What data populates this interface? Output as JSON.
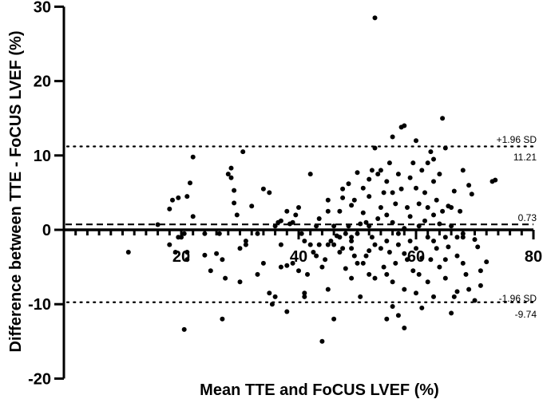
{
  "chart_data": {
    "type": "scatter",
    "title": "",
    "xlabel": "Mean TTE and FoCUS LVEF (%)",
    "ylabel": "Difference between TTE - FoCUS LVEF (%)",
    "xlim": [
      0,
      80
    ],
    "ylim": [
      -20,
      30
    ],
    "xticks": [
      20,
      40,
      60,
      80
    ],
    "yticks": [
      -20,
      -10,
      0,
      10,
      20,
      30
    ],
    "grid": false,
    "reference_lines": [
      {
        "name": "+1.96 SD",
        "value": 11.21,
        "style": "dotted",
        "label_top": "+1.96 SD",
        "label_bottom": "11.21"
      },
      {
        "name": "mean bias",
        "value": 0.73,
        "style": "dashed",
        "label_top": "0.73"
      },
      {
        "name": "-1.96 SD",
        "value": -9.74,
        "style": "dotted",
        "label_top": "-1.96 SD",
        "label_bottom": "-9.74"
      }
    ],
    "points": [
      [
        11,
        -3
      ],
      [
        16,
        0.7
      ],
      [
        18,
        -2
      ],
      [
        19,
        -3
      ],
      [
        19.5,
        -1
      ],
      [
        20,
        -1
      ],
      [
        20.5,
        -0.5
      ],
      [
        21,
        -4
      ],
      [
        21,
        -3
      ],
      [
        20.5,
        -13.4
      ],
      [
        18,
        2.8
      ],
      [
        18.5,
        4
      ],
      [
        19.5,
        4.3
      ],
      [
        21,
        4.5
      ],
      [
        21.5,
        6.3
      ],
      [
        22,
        9.8
      ],
      [
        22,
        1.8
      ],
      [
        24,
        -0.5
      ],
      [
        24,
        -3.4
      ],
      [
        25,
        -5.5
      ],
      [
        26,
        -3.2
      ],
      [
        26.5,
        -0.5
      ],
      [
        27,
        -4
      ],
      [
        27,
        -12
      ],
      [
        27.5,
        -6.5
      ],
      [
        28,
        7.5
      ],
      [
        28.5,
        8.3
      ],
      [
        28.5,
        7
      ],
      [
        29,
        5.3
      ],
      [
        29,
        3.6
      ],
      [
        29.5,
        2
      ],
      [
        30,
        -7
      ],
      [
        30,
        -2.5
      ],
      [
        30.5,
        10.5
      ],
      [
        31,
        -1.5
      ],
      [
        31,
        -2
      ],
      [
        32,
        3.2
      ],
      [
        33,
        -0.5
      ],
      [
        33,
        -6
      ],
      [
        34,
        -4.5
      ],
      [
        34,
        5.5
      ],
      [
        35,
        5
      ],
      [
        35,
        -8.5
      ],
      [
        35.5,
        -10
      ],
      [
        36,
        -9
      ],
      [
        36,
        0.5
      ],
      [
        36.5,
        1
      ],
      [
        37,
        -5
      ],
      [
        37,
        -2
      ],
      [
        37,
        1.2
      ],
      [
        38,
        -11
      ],
      [
        38,
        2.5
      ],
      [
        38,
        -4.8
      ],
      [
        38.5,
        0.8
      ],
      [
        39,
        1
      ],
      [
        39.5,
        2
      ],
      [
        40,
        -5.5
      ],
      [
        40,
        3
      ],
      [
        40.5,
        -0.5
      ],
      [
        41,
        -1.5
      ],
      [
        41,
        -8.5
      ],
      [
        41,
        -9
      ],
      [
        41.5,
        -6
      ],
      [
        42,
        7.5
      ],
      [
        42,
        -2
      ],
      [
        42.5,
        -3
      ],
      [
        43,
        0.5
      ],
      [
        43.5,
        1.5
      ],
      [
        43.5,
        -2
      ],
      [
        44,
        -15
      ],
      [
        44,
        -5
      ],
      [
        44.5,
        -4
      ],
      [
        45,
        4
      ],
      [
        45,
        -2
      ],
      [
        45,
        2.5
      ],
      [
        45.5,
        -1.5
      ],
      [
        46,
        -2
      ],
      [
        46,
        0.5
      ],
      [
        46.5,
        -0.8
      ],
      [
        47,
        -3
      ],
      [
        47,
        -1
      ],
      [
        47,
        2.5
      ],
      [
        47.5,
        4.3
      ],
      [
        47.5,
        5.5
      ],
      [
        47.5,
        -2.5
      ],
      [
        48,
        -0.5
      ],
      [
        48.5,
        6.2
      ],
      [
        48.5,
        0.5
      ],
      [
        49,
        -1
      ],
      [
        49,
        3.3
      ],
      [
        49,
        -6.5
      ],
      [
        49,
        -1.5
      ],
      [
        49.5,
        4
      ],
      [
        49.5,
        -3.5
      ],
      [
        50,
        7.7
      ],
      [
        50,
        -0.5
      ],
      [
        50.5,
        0.8
      ],
      [
        50.5,
        -9
      ],
      [
        51,
        2.3
      ],
      [
        51,
        5.6
      ],
      [
        51,
        -4.5
      ],
      [
        51.5,
        1
      ],
      [
        51.5,
        -3.5
      ],
      [
        52,
        0.5
      ],
      [
        52,
        4.5
      ],
      [
        52,
        6.8
      ],
      [
        52,
        -6
      ],
      [
        52.5,
        -1
      ],
      [
        52.5,
        8
      ],
      [
        53,
        -6.5
      ],
      [
        53,
        -2
      ],
      [
        53,
        11
      ],
      [
        53.5,
        7.5
      ],
      [
        53.5,
        1.5
      ],
      [
        54,
        8
      ],
      [
        54,
        3
      ],
      [
        54,
        -2.5
      ],
      [
        54.5,
        -5
      ],
      [
        54.5,
        5
      ],
      [
        55,
        -6
      ],
      [
        55,
        2
      ],
      [
        55,
        6.5
      ],
      [
        55,
        -1.5
      ],
      [
        55.5,
        9
      ],
      [
        55.5,
        -3
      ],
      [
        56,
        1
      ],
      [
        56,
        5
      ],
      [
        56,
        -7
      ],
      [
        56,
        12.5
      ],
      [
        56.5,
        3.5
      ],
      [
        56.5,
        -4.5
      ],
      [
        57,
        -0.5
      ],
      [
        57,
        7.5
      ],
      [
        57,
        -2
      ],
      [
        57.5,
        13.8
      ],
      [
        57.5,
        5.5
      ],
      [
        58,
        0.2
      ],
      [
        58,
        14
      ],
      [
        58,
        -8
      ],
      [
        58,
        -13.2
      ],
      [
        58.5,
        3
      ],
      [
        58.5,
        -4
      ],
      [
        59,
        7
      ],
      [
        59,
        -1.5
      ],
      [
        59,
        1.8
      ],
      [
        59.5,
        9
      ],
      [
        59.5,
        -5.5
      ],
      [
        60,
        5.6
      ],
      [
        60,
        -2.5
      ],
      [
        60,
        12
      ],
      [
        60.5,
        0.5
      ],
      [
        60.5,
        3.5
      ],
      [
        60.5,
        -6
      ],
      [
        61,
        -3.8
      ],
      [
        61,
        -10.5
      ],
      [
        61,
        8
      ],
      [
        61.5,
        1.2
      ],
      [
        61.5,
        5
      ],
      [
        62,
        -1
      ],
      [
        62,
        9
      ],
      [
        62,
        3
      ],
      [
        62,
        -7
      ],
      [
        62.5,
        10.5
      ],
      [
        62.5,
        -4
      ],
      [
        63,
        2
      ],
      [
        63,
        6.5
      ],
      [
        63,
        -1.5
      ],
      [
        63.5,
        -2.5
      ],
      [
        63.5,
        4
      ],
      [
        64,
        -5
      ],
      [
        64,
        0.8
      ],
      [
        64.5,
        2.5
      ],
      [
        64.5,
        15
      ],
      [
        65,
        -1
      ],
      [
        65,
        -6.5
      ],
      [
        65,
        11
      ],
      [
        65.5,
        -2.3
      ],
      [
        65.5,
        3.2
      ],
      [
        66,
        -11.2
      ],
      [
        66,
        0.5
      ],
      [
        66.5,
        5.2
      ],
      [
        67,
        -3.5
      ],
      [
        67,
        -8.3
      ],
      [
        67,
        -1
      ],
      [
        67.5,
        2.5
      ],
      [
        68,
        8
      ],
      [
        68,
        -0.5
      ],
      [
        68,
        -4.5
      ],
      [
        68.5,
        -6
      ],
      [
        69,
        6
      ],
      [
        69,
        -8
      ],
      [
        69.5,
        4.8
      ],
      [
        70,
        -9.5
      ],
      [
        70,
        -1.3
      ],
      [
        70.5,
        -2.3
      ],
      [
        71,
        -7.5
      ],
      [
        71,
        -5.5
      ],
      [
        68,
        -1
      ],
      [
        66,
        3
      ],
      [
        64,
        7.5
      ],
      [
        63,
        9.5
      ],
      [
        72,
        -4.3
      ],
      [
        73,
        6.5
      ],
      [
        73.5,
        6.7
      ],
      [
        46,
        -12
      ],
      [
        56,
        -10.3
      ],
      [
        53,
        28.5
      ],
      [
        55,
        -12
      ],
      [
        57,
        -11.5
      ],
      [
        49,
        -2.5
      ],
      [
        50,
        -4.5
      ],
      [
        43,
        -3.5
      ],
      [
        39,
        -4.5
      ],
      [
        45,
        -8
      ],
      [
        60,
        -8.5
      ],
      [
        58,
        -3.2
      ],
      [
        52,
        -2.8
      ],
      [
        48,
        -5.2
      ],
      [
        63,
        -9
      ],
      [
        65,
        -4
      ],
      [
        66.5,
        -9
      ]
    ]
  },
  "axes": {
    "ytick_labels": [
      "30",
      "20",
      "10",
      "0",
      "-10",
      "-20"
    ],
    "xtick_labels": [
      "20",
      "40",
      "60",
      "80"
    ]
  },
  "annotations": {
    "upper_top": "+1.96 SD",
    "upper_bottom": "11.21",
    "mean": "0.73",
    "lower_top": "-1.96 SD",
    "lower_bottom": "-9.74"
  }
}
